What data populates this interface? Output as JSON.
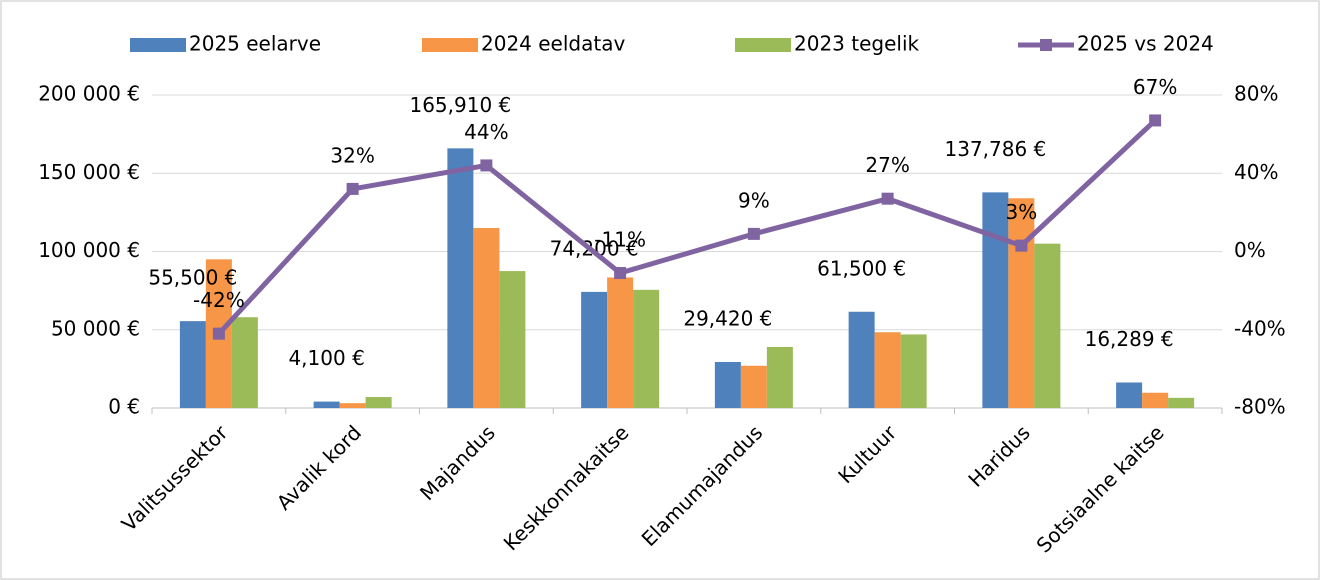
{
  "chart_data": {
    "type": "bar",
    "categories": [
      "Valitsussektor",
      "Avalik kord",
      "Majandus",
      "Keskkonnakaitse",
      "Elamumajandus",
      "Kultuur",
      "Haridus",
      "Sotsiaalne kaitse"
    ],
    "series": [
      {
        "name": "2025 eelarve",
        "color": "#4f81bd",
        "values": [
          55500,
          4100,
          165910,
          74200,
          29420,
          61500,
          137786,
          16289
        ],
        "value_labels": [
          "55,500 €",
          "4,100 €",
          "165,910 €",
          "74,200 €",
          "29,420 €",
          "61,500 €",
          "137,786 €",
          "16,289 €"
        ]
      },
      {
        "name": "2024 eeldatav",
        "color": "#f79646",
        "values": [
          95000,
          3100,
          115000,
          83400,
          27000,
          48400,
          134000,
          9750
        ]
      },
      {
        "name": "2023 tegelik",
        "color": "#9bbb59",
        "values": [
          58000,
          7000,
          87500,
          75500,
          39000,
          47000,
          105000,
          6500
        ]
      },
      {
        "name": "2025 vs 2024",
        "color": "#8064a2",
        "type": "line",
        "axis": "y2",
        "values": [
          -42,
          32,
          44,
          -11,
          9,
          27,
          3,
          67
        ],
        "value_labels": [
          "-42%",
          "32%",
          "44%",
          "-11%",
          "9%",
          "27%",
          "3%",
          "67%"
        ]
      }
    ],
    "ylim": [
      0,
      200000
    ],
    "yticks": [
      {
        "value": 0,
        "label": "0 €"
      },
      {
        "value": 50000,
        "label": "50 000 €"
      },
      {
        "value": 100000,
        "label": "100 000 €"
      },
      {
        "value": 150000,
        "label": "150 000 €"
      },
      {
        "value": 200000,
        "label": "200 000 €"
      }
    ],
    "y2lim": [
      -80,
      80
    ],
    "y2ticks": [
      {
        "value": -80,
        "label": "-80%"
      },
      {
        "value": -40,
        "label": "-40%"
      },
      {
        "value": 0,
        "label": "0%"
      },
      {
        "value": 40,
        "label": "40%"
      },
      {
        "value": 80,
        "label": "80%"
      }
    ],
    "grid": true,
    "legend": "top"
  }
}
